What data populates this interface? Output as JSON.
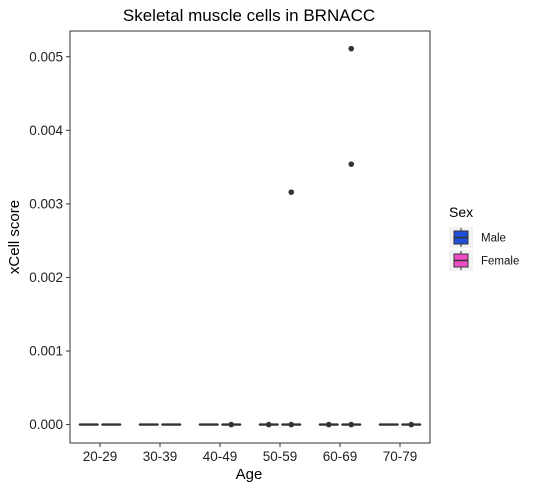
{
  "chart_data": {
    "type": "box",
    "title": "Skeletal muscle cells in BRNACC",
    "xlabel": "Age",
    "ylabel": "xCell score",
    "categories": [
      "20-29",
      "30-39",
      "40-49",
      "50-59",
      "60-69",
      "70-79"
    ],
    "ylim": [
      -0.00025,
      0.00535
    ],
    "yticks": [
      0,
      0.001,
      0.002,
      0.003,
      0.004,
      0.005
    ],
    "ytick_labels": [
      "0.000",
      "0.001",
      "0.002",
      "0.003",
      "0.004",
      "0.005"
    ],
    "grid": false,
    "legend": {
      "title": "Sex",
      "position": "right",
      "entries": [
        {
          "name": "Male",
          "color": "#1f4fd8"
        },
        {
          "name": "Female",
          "color": "#f04cc8"
        }
      ]
    },
    "series": [
      {
        "name": "Male",
        "color": "#1f4fd8",
        "boxes": [
          {
            "category": "20-29",
            "q1": 0,
            "median": 0,
            "q3": 0,
            "whisker_low": 0,
            "whisker_high": 0,
            "outliers": []
          },
          {
            "category": "30-39",
            "q1": 0,
            "median": 0,
            "q3": 0,
            "whisker_low": 0,
            "whisker_high": 0,
            "outliers": []
          },
          {
            "category": "40-49",
            "q1": 0,
            "median": 0,
            "q3": 0,
            "whisker_low": 0,
            "whisker_high": 0,
            "outliers": []
          },
          {
            "category": "50-59",
            "q1": 0,
            "median": 0,
            "q3": 0,
            "whisker_low": 0,
            "whisker_high": 0,
            "outliers": [
              0
            ]
          },
          {
            "category": "60-69",
            "q1": 0,
            "median": 0,
            "q3": 0,
            "whisker_low": 0,
            "whisker_high": 0,
            "outliers": [
              0
            ]
          },
          {
            "category": "70-79",
            "q1": 0,
            "median": 0,
            "q3": 0,
            "whisker_low": 0,
            "whisker_high": 0,
            "outliers": []
          }
        ]
      },
      {
        "name": "Female",
        "color": "#f04cc8",
        "boxes": [
          {
            "category": "20-29",
            "q1": 0,
            "median": 0,
            "q3": 0,
            "whisker_low": 0,
            "whisker_high": 0,
            "outliers": []
          },
          {
            "category": "30-39",
            "q1": 0,
            "median": 0,
            "q3": 0,
            "whisker_low": 0,
            "whisker_high": 0,
            "outliers": []
          },
          {
            "category": "40-49",
            "q1": 0,
            "median": 0,
            "q3": 0,
            "whisker_low": 0,
            "whisker_high": 0,
            "outliers": [
              0
            ]
          },
          {
            "category": "50-59",
            "q1": 0,
            "median": 0,
            "q3": 0,
            "whisker_low": 0,
            "whisker_high": 0,
            "outliers": [
              0,
              0.00316
            ]
          },
          {
            "category": "60-69",
            "q1": 0,
            "median": 0,
            "q3": 0,
            "whisker_low": 0,
            "whisker_high": 0,
            "outliers": [
              0,
              0.00354,
              0.00511
            ]
          },
          {
            "category": "70-79",
            "q1": 0,
            "median": 0,
            "q3": 0,
            "whisker_low": 0,
            "whisker_high": 0,
            "outliers": [
              0
            ]
          }
        ]
      }
    ]
  }
}
